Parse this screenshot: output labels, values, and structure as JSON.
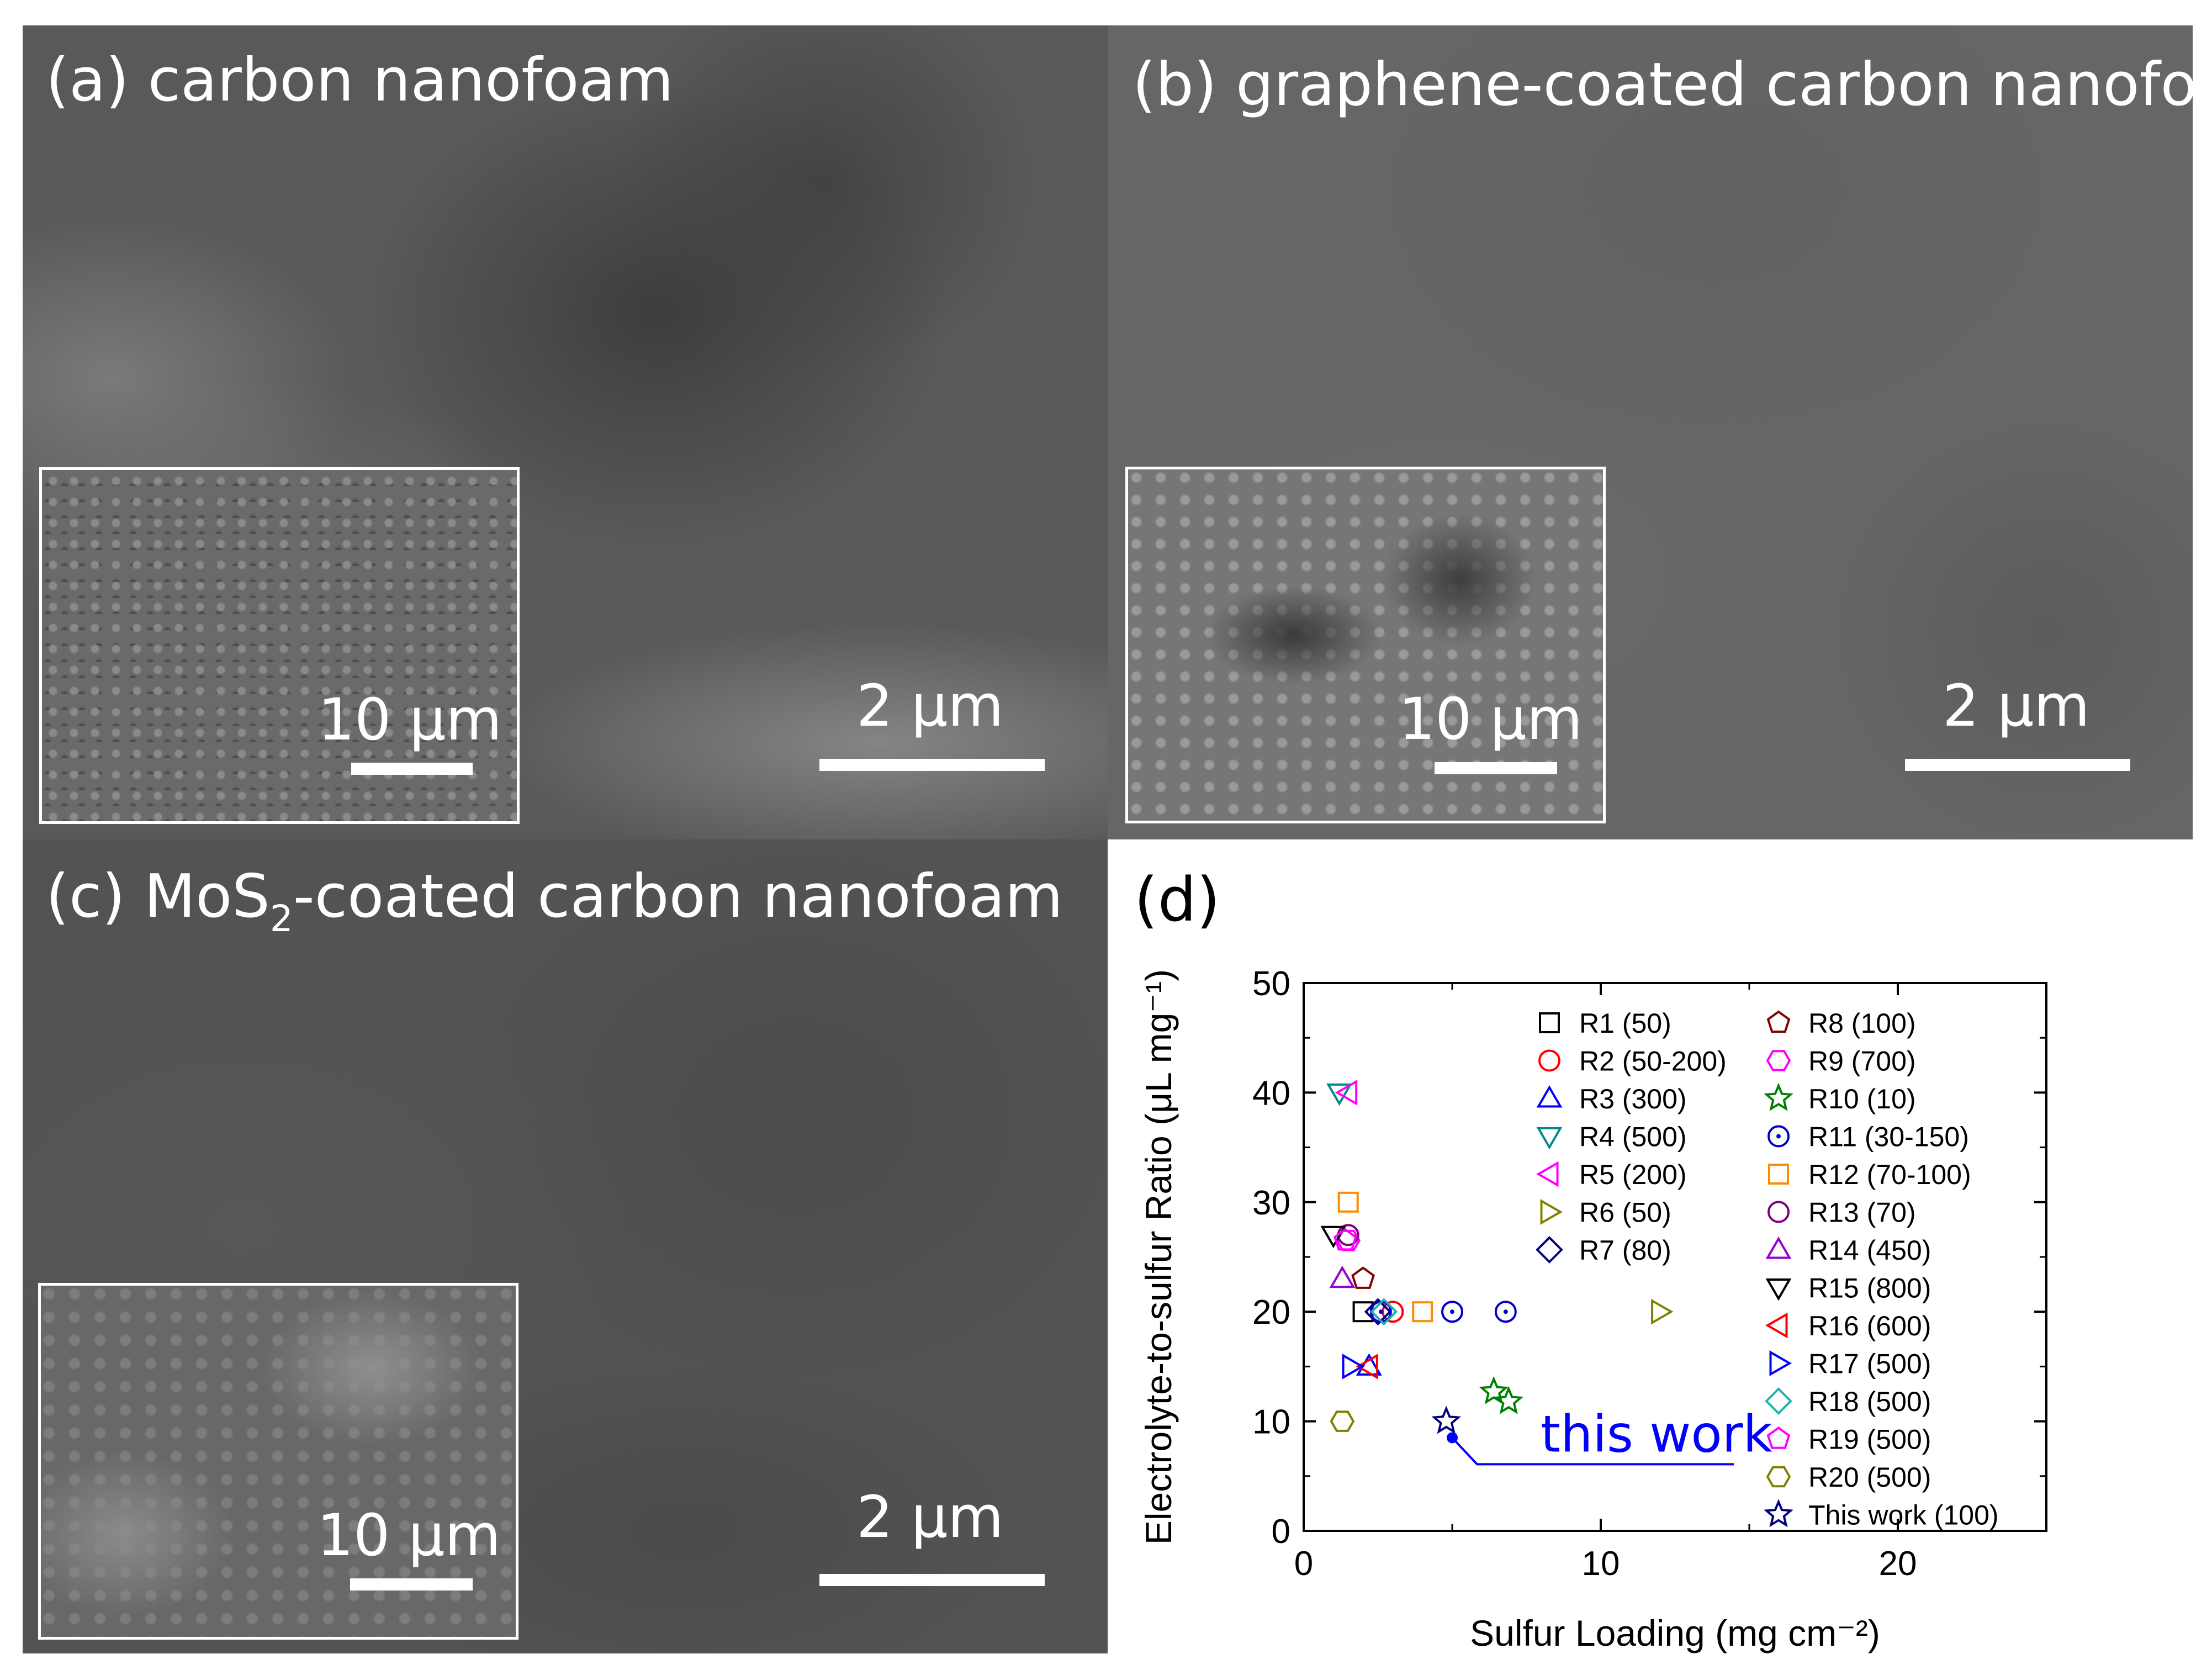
{
  "panels": {
    "a": {
      "title": "(a) carbon nanofoam",
      "inset_scale": "10 μm",
      "main_scale": "2 μm"
    },
    "b": {
      "title": "(b) graphene-coated carbon nanofoam",
      "inset_scale": "10 μm",
      "main_scale": "2 μm"
    },
    "c": {
      "title_prefix": "(c) MoS",
      "title_sub": "2",
      "title_suffix": "-coated carbon nanofoam",
      "inset_scale": "10 μm",
      "main_scale": "2 μm"
    },
    "d": {
      "label": "(d)"
    }
  },
  "chart_data": {
    "type": "scatter",
    "title": "",
    "xlabel": "Sulfur Loading (mg cm⁻²)",
    "ylabel": "Electrolyte-to-sulfur Ratio (μL mg⁻¹)",
    "xlim": [
      0,
      25
    ],
    "ylim": [
      0,
      50
    ],
    "xticks": [
      0,
      10,
      20
    ],
    "yticks": [
      0,
      10,
      20,
      30,
      40,
      50
    ],
    "annotation": {
      "text": "this work",
      "color": "#0000ff",
      "point": [
        5.0,
        8.5
      ]
    },
    "series": [
      {
        "name": "R1 (50)",
        "marker": "square",
        "color": "#000000",
        "points": [
          [
            2.0,
            20
          ]
        ]
      },
      {
        "name": "R2 (50-200)",
        "marker": "circle",
        "color": "#ff0000",
        "points": [
          [
            3.0,
            20
          ]
        ]
      },
      {
        "name": "R3 (300)",
        "marker": "triangle-up",
        "color": "#0000ff",
        "points": [
          [
            2.2,
            15
          ]
        ]
      },
      {
        "name": "R4 (500)",
        "marker": "triangle-down",
        "color": "#008b8b",
        "points": [
          [
            1.2,
            40
          ]
        ]
      },
      {
        "name": "R5 (200)",
        "marker": "triangle-left",
        "color": "#ff00ff",
        "points": [
          [
            1.5,
            40
          ]
        ]
      },
      {
        "name": "R6 (50)",
        "marker": "triangle-right",
        "color": "#808000",
        "points": [
          [
            12.0,
            20
          ]
        ]
      },
      {
        "name": "R7 (80)",
        "marker": "diamond",
        "color": "#000080",
        "points": [
          [
            2.5,
            20
          ]
        ]
      },
      {
        "name": "R8 (100)",
        "marker": "pentagon",
        "color": "#800000",
        "points": [
          [
            2.0,
            23
          ]
        ]
      },
      {
        "name": "R9 (700)",
        "marker": "hexagon",
        "color": "#ff00ff",
        "points": [
          [
            1.5,
            26.5
          ]
        ]
      },
      {
        "name": "R10 (10)",
        "marker": "star",
        "color": "#008000",
        "points": [
          [
            6.4,
            12.7
          ],
          [
            6.9,
            11.8
          ]
        ]
      },
      {
        "name": "R11 (30-150)",
        "marker": "circle-dot",
        "color": "#0000cd",
        "points": [
          [
            5.0,
            20
          ],
          [
            6.8,
            20
          ],
          [
            2.6,
            20
          ]
        ]
      },
      {
        "name": "R12 (70-100)",
        "marker": "square",
        "color": "#ff8c00",
        "points": [
          [
            1.5,
            30
          ],
          [
            4.0,
            20
          ]
        ]
      },
      {
        "name": "R13 (70)",
        "marker": "circle",
        "color": "#800080",
        "points": [
          [
            1.5,
            27
          ]
        ]
      },
      {
        "name": "R14 (450)",
        "marker": "triangle-up",
        "color": "#9400d3",
        "points": [
          [
            1.3,
            23
          ]
        ]
      },
      {
        "name": "R15 (800)",
        "marker": "triangle-down",
        "color": "#000000",
        "points": [
          [
            1.0,
            27
          ]
        ]
      },
      {
        "name": "R16 (600)",
        "marker": "triangle-left",
        "color": "#ff0000",
        "points": [
          [
            2.2,
            15
          ]
        ]
      },
      {
        "name": "R17 (500)",
        "marker": "triangle-right",
        "color": "#0000ff",
        "points": [
          [
            1.6,
            15
          ]
        ]
      },
      {
        "name": "R18 (500)",
        "marker": "diamond",
        "color": "#20b2aa",
        "points": [
          [
            2.7,
            20
          ]
        ]
      },
      {
        "name": "R19 (500)",
        "marker": "pentagon",
        "color": "#ff00ff",
        "points": [
          [
            1.4,
            26.5
          ]
        ]
      },
      {
        "name": "R20 (500)",
        "marker": "hexagon",
        "color": "#808000",
        "points": [
          [
            1.3,
            10
          ]
        ]
      },
      {
        "name": "This work (100)",
        "marker": "star",
        "color": "#000080",
        "points": [
          [
            4.8,
            10
          ]
        ]
      }
    ]
  }
}
